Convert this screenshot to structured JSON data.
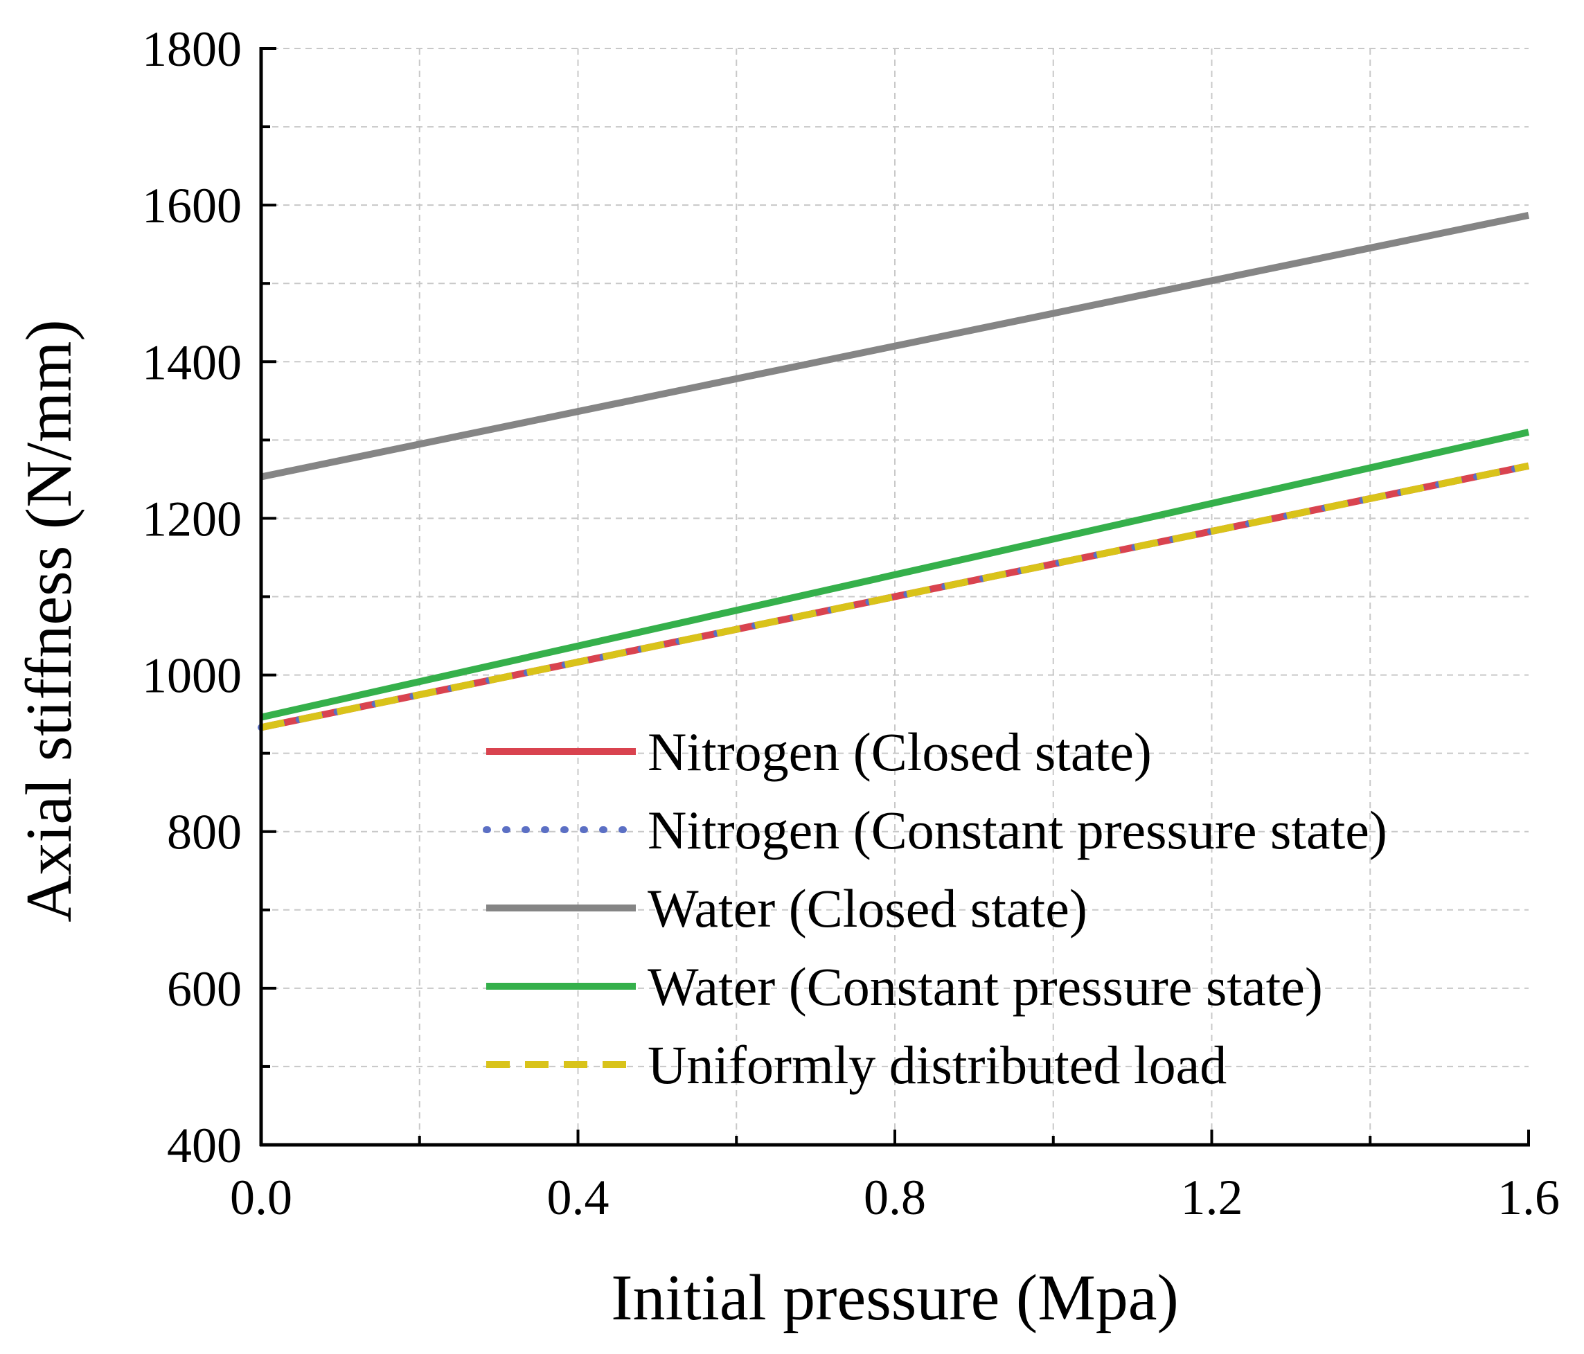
{
  "chart_data": {
    "type": "line",
    "title": "",
    "xlabel": "Initial pressure (Mpa)",
    "ylabel": "Axial stiffness (N/mm)",
    "xlim": [
      0.0,
      1.6
    ],
    "ylim": [
      400,
      1800
    ],
    "x_ticks": [
      "0.0",
      "0.4",
      "0.8",
      "1.2",
      "1.6"
    ],
    "x_tick_values": [
      0.0,
      0.4,
      0.8,
      1.2,
      1.6
    ],
    "y_ticks": [
      "400",
      "600",
      "800",
      "1000",
      "1200",
      "1400",
      "1600",
      "1800"
    ],
    "y_tick_values": [
      400,
      600,
      800,
      1000,
      1200,
      1400,
      1600,
      1800
    ],
    "grid": true,
    "legend_position": "lower-right",
    "series": [
      {
        "name": "Nitrogen (Closed state)",
        "color": "#d9434f",
        "style": "solid",
        "x": [
          0.0,
          1.6
        ],
        "y": [
          933,
          1267
        ]
      },
      {
        "name": "Nitrogen (Constant pressure state)",
        "color": "#5b6fc4",
        "style": "dotted",
        "x": [
          0.0,
          1.6
        ],
        "y": [
          933,
          1267
        ]
      },
      {
        "name": "Water (Closed state)",
        "color": "#858585",
        "style": "solid",
        "x": [
          0.0,
          1.6
        ],
        "y": [
          1253,
          1587
        ]
      },
      {
        "name": "Water (Constant pressure state)",
        "color": "#35b04b",
        "style": "solid",
        "x": [
          0.0,
          1.6
        ],
        "y": [
          946,
          1310
        ]
      },
      {
        "name": "Uniformly distributed load",
        "color": "#d9c31a",
        "style": "dashed",
        "x": [
          0.0,
          1.6
        ],
        "y": [
          933,
          1267
        ]
      }
    ]
  }
}
